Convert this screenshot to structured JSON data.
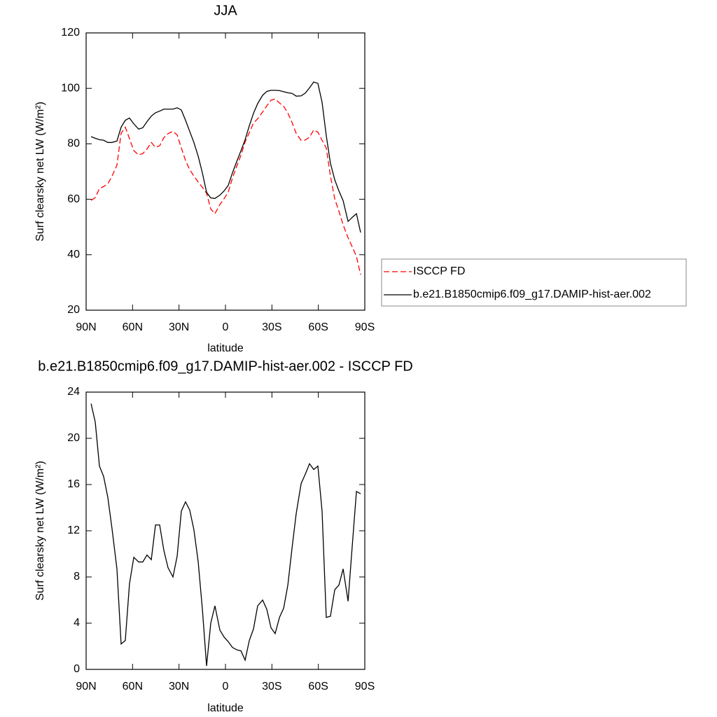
{
  "chart_data": [
    {
      "type": "line",
      "title": "JJA",
      "x_label": "latitude",
      "y_label": "Surf clearsky net LW (W/m²)",
      "x": [
        86.8,
        84.1,
        81.4,
        78.7,
        76.0,
        73.3,
        70.1,
        67.4,
        64.7,
        62.0,
        59.2,
        56.1,
        53.4,
        50.7,
        47.9,
        45.2,
        42.5,
        39.8,
        37.1,
        33.9,
        31.2,
        28.5,
        25.8,
        23.1,
        20.4,
        17.6,
        14.9,
        12.2,
        9.5,
        6.8,
        3.6,
        0.9,
        -1.8,
        -4.5,
        -7.2,
        -10.0,
        -12.7,
        -15.4,
        -18.1,
        -20.8,
        -24.0,
        -26.7,
        -29.4,
        -32.1,
        -34.9,
        -37.6,
        -40.3,
        -43.0,
        -45.7,
        -48.9,
        -51.6,
        -54.3,
        -57.0,
        -59.7,
        -62.4,
        -65.1,
        -67.8,
        -70.6,
        -73.3,
        -76.0,
        -79.2,
        -81.9,
        -84.6,
        -87.3
      ],
      "series": [
        {
          "name": "ISCCP FD",
          "color": "#ff0000",
          "dash": true,
          "values": [
            59.6,
            60.6,
            63.9,
            64.6,
            65.6,
            68.3,
            72.3,
            83.8,
            86.0,
            81.9,
            77.5,
            76.0,
            76.5,
            78.1,
            80.5,
            78.7,
            79.3,
            82.2,
            83.7,
            84.5,
            83.2,
            78.5,
            74.0,
            70.7,
            68.4,
            66.2,
            64.3,
            62.2,
            56.5,
            54.8,
            58.1,
            60.2,
            62.6,
            67.6,
            71.8,
            75.9,
            80.7,
            84.0,
            87.5,
            89.0,
            91.5,
            93.7,
            95.7,
            96.2,
            94.7,
            93.5,
            91.1,
            87.7,
            83.7,
            81.2,
            81.4,
            82.4,
            85.0,
            84.2,
            81.3,
            78.5,
            68.4,
            60.1,
            55.7,
            50.8,
            46.1,
            42.8,
            39.4,
            32.8
          ]
        },
        {
          "name": "b.e21.B1850cmip6.f09_g17.DAMIP-hist-aer.002",
          "color": "#000000",
          "dash": false,
          "values": [
            82.6,
            82.0,
            81.5,
            81.3,
            80.5,
            80.5,
            81.0,
            86.0,
            88.5,
            89.3,
            87.2,
            85.3,
            85.8,
            88.0,
            90.0,
            91.2,
            91.8,
            92.5,
            92.5,
            92.5,
            93.0,
            92.2,
            88.5,
            84.5,
            80.5,
            75.5,
            69.5,
            62.5,
            60.5,
            60.3,
            61.5,
            63.0,
            65.0,
            69.5,
            73.5,
            77.5,
            81.5,
            86.5,
            91.0,
            94.5,
            97.5,
            98.9,
            99.3,
            99.3,
            99.2,
            98.8,
            98.4,
            98.2,
            97.2,
            97.3,
            98.3,
            100.2,
            102.3,
            101.8,
            95.0,
            83.0,
            73.0,
            67.0,
            63.0,
            59.5,
            52.0,
            53.5,
            54.8,
            48.0
          ]
        }
      ],
      "xlim": [
        90,
        -90
      ],
      "xticks": [
        {
          "value": 90,
          "label": "90N"
        },
        {
          "value": 60,
          "label": "60N"
        },
        {
          "value": 30,
          "label": "30N"
        },
        0,
        {
          "value": -30,
          "label": "30S"
        },
        {
          "value": -60,
          "label": "60S"
        },
        {
          "value": -90,
          "label": "90S"
        }
      ],
      "ylim": [
        20,
        120
      ],
      "yticks": [
        20,
        40,
        60,
        80,
        100,
        120
      ],
      "legend": "right"
    },
    {
      "type": "line",
      "title": "b.e21.B1850cmip6.f09_g17.DAMIP-hist-aer.002 - ISCCP FD",
      "x_label": "latitude",
      "y_label": "Surf clearsky net LW (W/m²)",
      "x": [
        86.8,
        84.1,
        81.4,
        78.7,
        76.0,
        73.3,
        70.1,
        67.4,
        64.7,
        62.0,
        59.2,
        56.1,
        53.4,
        50.7,
        47.9,
        45.2,
        42.5,
        39.8,
        37.1,
        33.9,
        31.2,
        28.5,
        25.8,
        23.1,
        20.4,
        17.6,
        14.9,
        12.2,
        9.5,
        6.8,
        3.6,
        0.9,
        -1.8,
        -4.5,
        -7.2,
        -10.0,
        -12.7,
        -15.4,
        -18.1,
        -20.8,
        -24.0,
        -26.7,
        -29.4,
        -32.1,
        -34.9,
        -37.6,
        -40.3,
        -43.0,
        -45.7,
        -48.9,
        -51.6,
        -54.3,
        -57.0,
        -59.7,
        -62.4,
        -65.1,
        -67.8,
        -70.6,
        -73.3,
        -76.0,
        -79.2,
        -81.9,
        -84.6,
        -87.3
      ],
      "color": "#000000",
      "values": [
        23.0,
        21.4,
        17.6,
        16.7,
        14.9,
        12.2,
        8.7,
        2.2,
        2.5,
        7.4,
        9.7,
        9.3,
        9.3,
        9.9,
        9.5,
        12.5,
        12.5,
        10.3,
        8.8,
        8.0,
        9.8,
        13.7,
        14.5,
        13.8,
        12.1,
        9.3,
        5.2,
        0.3,
        4.0,
        5.5,
        3.4,
        2.8,
        2.4,
        1.9,
        1.7,
        1.6,
        0.8,
        2.5,
        3.5,
        5.5,
        6.0,
        5.2,
        3.6,
        3.1,
        4.5,
        5.3,
        7.3,
        10.5,
        13.5,
        16.1,
        16.9,
        17.8,
        17.3,
        17.6,
        13.7,
        4.5,
        4.6,
        6.9,
        7.3,
        8.7,
        5.9,
        10.7,
        15.4,
        15.2
      ],
      "xlim": [
        90,
        -90
      ],
      "xticks": [
        {
          "value": 90,
          "label": "90N"
        },
        {
          "value": 60,
          "label": "60N"
        },
        {
          "value": 30,
          "label": "30N"
        },
        0,
        {
          "value": -30,
          "label": "30S"
        },
        {
          "value": -60,
          "label": "60S"
        },
        {
          "value": -90,
          "label": "90S"
        }
      ],
      "ylim": [
        0,
        24
      ],
      "yticks": [
        0,
        4,
        8,
        12,
        16,
        20,
        24
      ]
    }
  ]
}
